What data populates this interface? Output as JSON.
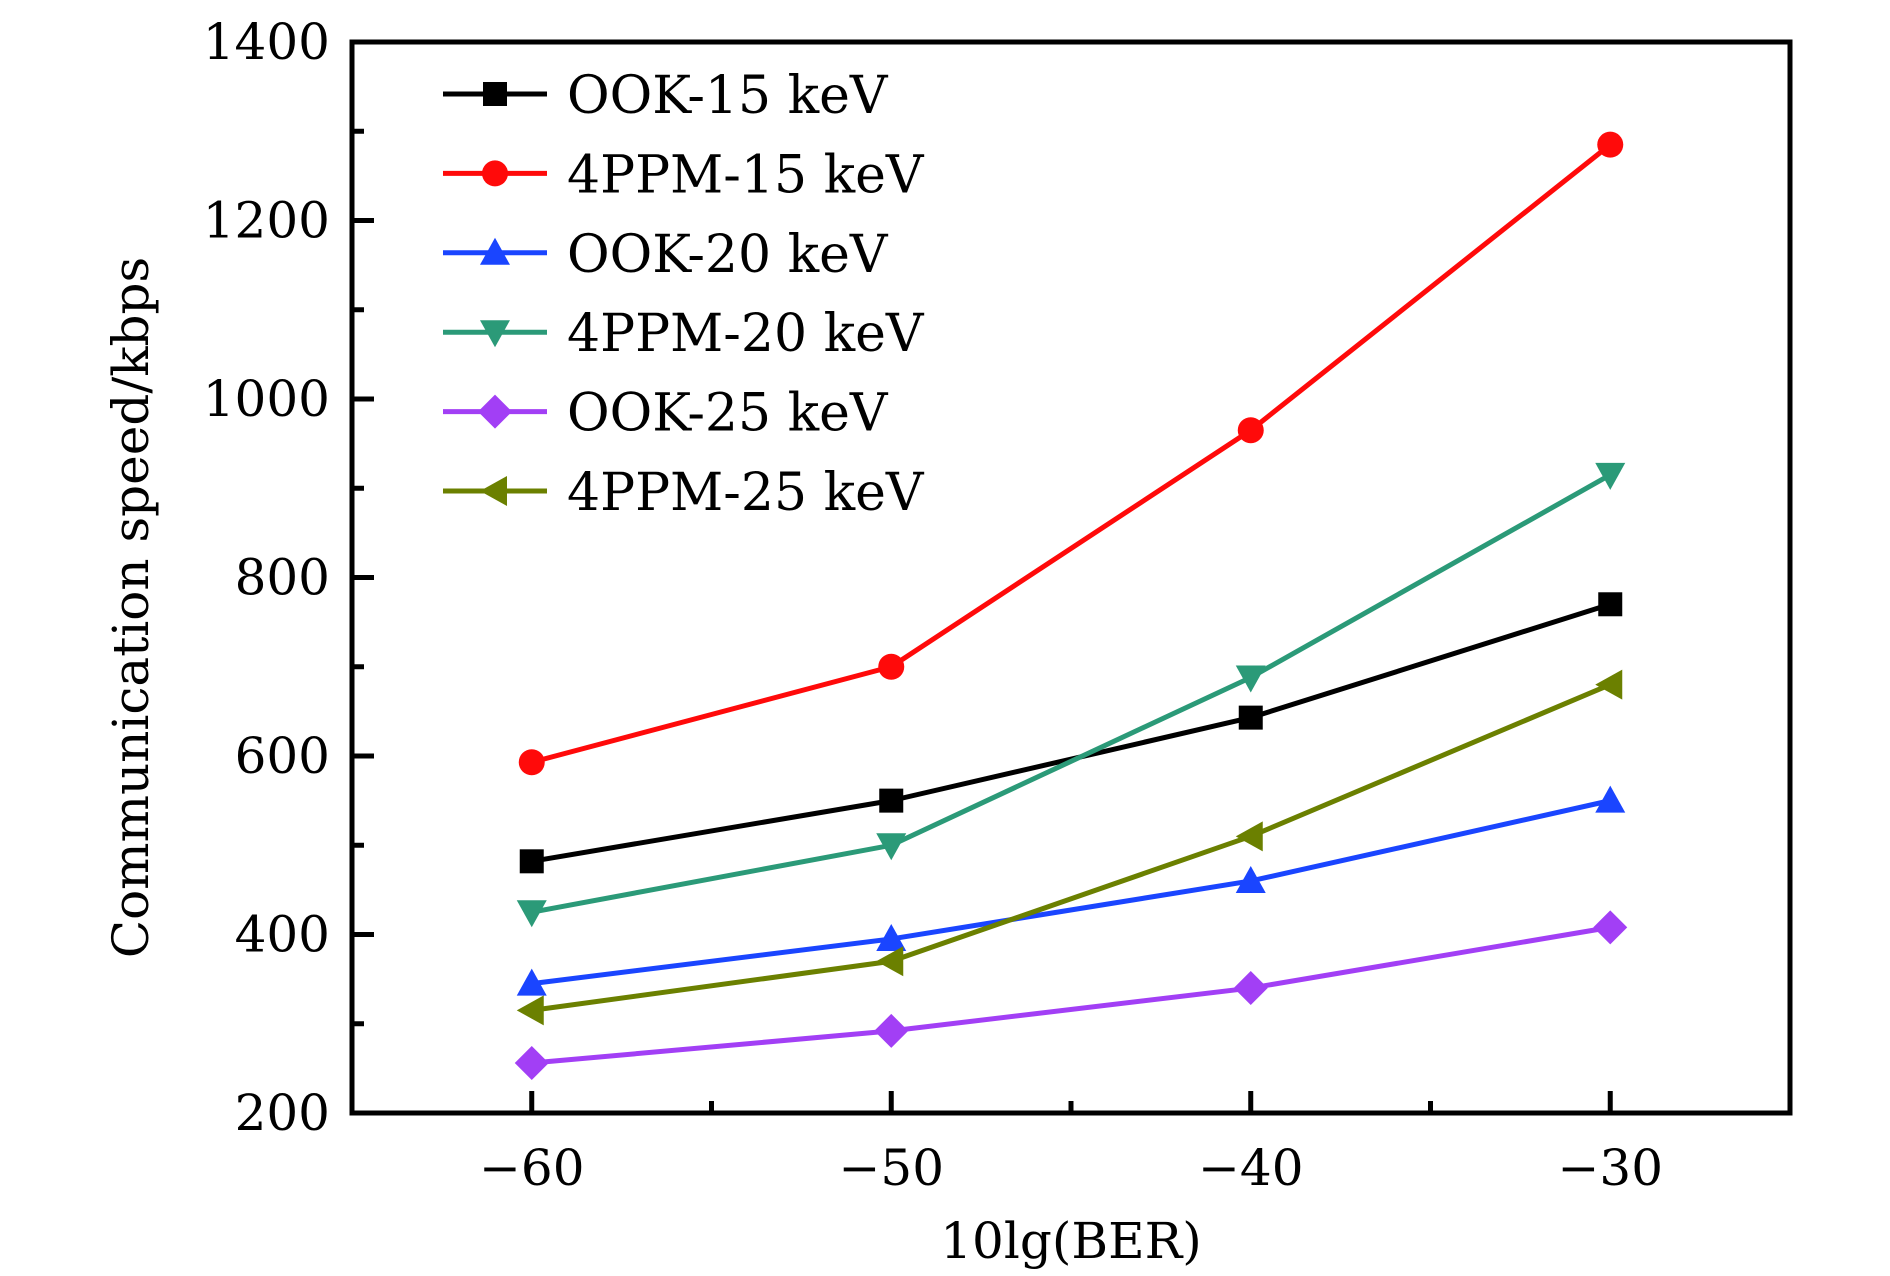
{
  "chart_data": {
    "type": "line",
    "title": "",
    "xlabel": "10lg(BER)",
    "ylabel": "Communication speed/kbps",
    "x": [
      -60,
      -50,
      -40,
      -30
    ],
    "xlim": [
      -65,
      -25
    ],
    "ylim": [
      200,
      1400
    ],
    "x_ticks": [
      -60,
      -50,
      -40,
      -30
    ],
    "x_tick_labels": [
      "−60",
      "−50",
      "−40",
      "−30"
    ],
    "x_minor_ticks": [
      -55,
      -45,
      -35
    ],
    "y_ticks": [
      200,
      400,
      600,
      800,
      1000,
      1200,
      1400
    ],
    "y_tick_labels": [
      "200",
      "400",
      "600",
      "800",
      "1000",
      "1200",
      "1400"
    ],
    "y_minor_ticks": [
      300,
      500,
      700,
      900,
      1100,
      1300
    ],
    "grid": false,
    "legend_position": "top-left",
    "series": [
      {
        "name": "OOK-15 keV",
        "color": "#000000",
        "marker": "square",
        "values": [
          482,
          550,
          643,
          770
        ]
      },
      {
        "name": "4PPM-15 keV",
        "color": "#ff0a0a",
        "marker": "circle",
        "values": [
          593,
          700,
          965,
          1285
        ]
      },
      {
        "name": "OOK-20 keV",
        "color": "#1a45ff",
        "marker": "triangle-up",
        "values": [
          345,
          395,
          460,
          550
        ]
      },
      {
        "name": "4PPM-20 keV",
        "color": "#2b9a78",
        "marker": "triangle-down",
        "values": [
          425,
          500,
          688,
          915
        ]
      },
      {
        "name": "OOK-25 keV",
        "color": "#a23ff5",
        "marker": "diamond",
        "values": [
          256,
          292,
          340,
          408
        ]
      },
      {
        "name": "4PPM-25 keV",
        "color": "#6b8000",
        "marker": "triangle-left",
        "values": [
          315,
          370,
          510,
          680
        ]
      }
    ]
  }
}
